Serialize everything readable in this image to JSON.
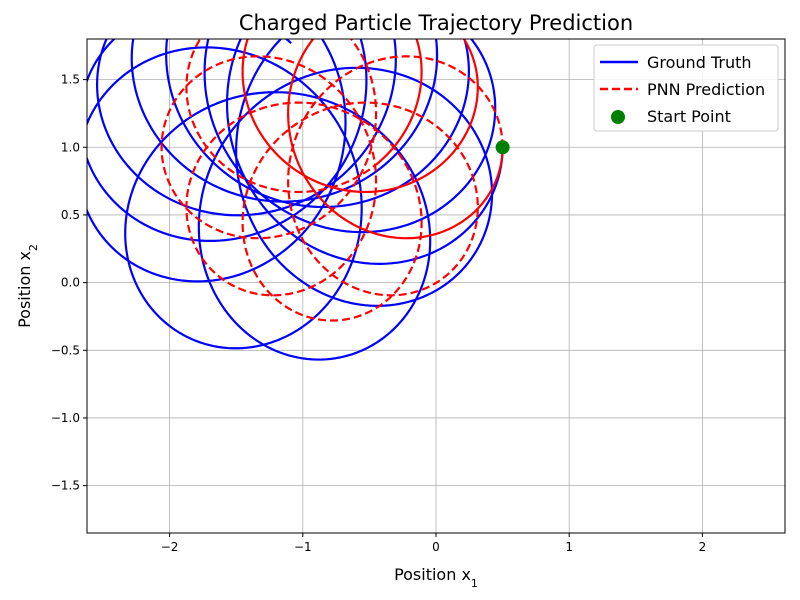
{
  "chart_data": {
    "type": "line",
    "title": "Charged Particle Trajectory Prediction",
    "xlabel": "Position x",
    "xlabel_sub": "1",
    "ylabel": "Position x",
    "ylabel_sub": "2",
    "xlim": [
      -2.62,
      2.62
    ],
    "ylim": [
      -1.85,
      1.8
    ],
    "xticks": [
      -2,
      -1,
      0,
      1,
      2
    ],
    "xtick_labels": [
      "−2",
      "−1",
      "0",
      "1",
      "2"
    ],
    "yticks": [
      -1.5,
      -1.0,
      -0.5,
      0.0,
      0.5,
      1.0,
      1.5
    ],
    "ytick_labels": [
      "−1.5",
      "−1.0",
      "−0.5",
      "0.0",
      "0.5",
      "1.0",
      "1.5"
    ],
    "grid": true,
    "legend_position": "top-right",
    "series": [
      {
        "name": "Ground Truth",
        "style": "solid",
        "color": "#0000ff",
        "params": {
          "R": 0.6,
          "r": 1.0,
          "w1": 0.55,
          "w2": 3.6,
          "t_end": 17.2
        }
      },
      {
        "name": "PNN Prediction",
        "style": "dashed",
        "color": "#ff0000",
        "params": {
          "R": 0.5,
          "r": 0.78,
          "w1": 0.5,
          "w2": 3.5,
          "t_end": 16.4
        }
      }
    ],
    "start_point": {
      "name": "Start Point",
      "x": 0.5,
      "y": 1.0,
      "color": "#008000"
    }
  }
}
